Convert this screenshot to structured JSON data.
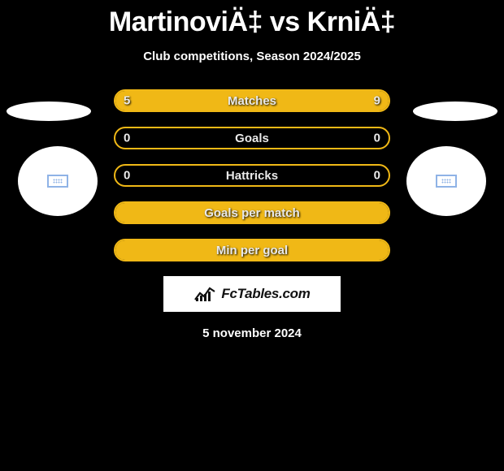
{
  "title": "MartinoviÄ‡ vs KrniÄ‡",
  "subtitle": "Club competitions, Season 2024/2025",
  "colors": {
    "background": "#000000",
    "accent": "#f0b816",
    "text": "#ffffff",
    "brand_bg": "#ffffff"
  },
  "rows": [
    {
      "label": "Matches",
      "left": "5",
      "right": "9",
      "left_pct": 36,
      "right_pct": 64
    },
    {
      "label": "Goals",
      "left": "0",
      "right": "0",
      "left_pct": 0,
      "right_pct": 0
    },
    {
      "label": "Hattricks",
      "left": "0",
      "right": "0",
      "left_pct": 0,
      "right_pct": 0
    },
    {
      "label": "Goals per match",
      "left": "",
      "right": "",
      "left_pct": 100,
      "right_pct": 0,
      "full": true
    },
    {
      "label": "Min per goal",
      "left": "",
      "right": "",
      "left_pct": 100,
      "right_pct": 0,
      "full": true
    }
  ],
  "brand": "FcTables.com",
  "date": "5 november 2024"
}
